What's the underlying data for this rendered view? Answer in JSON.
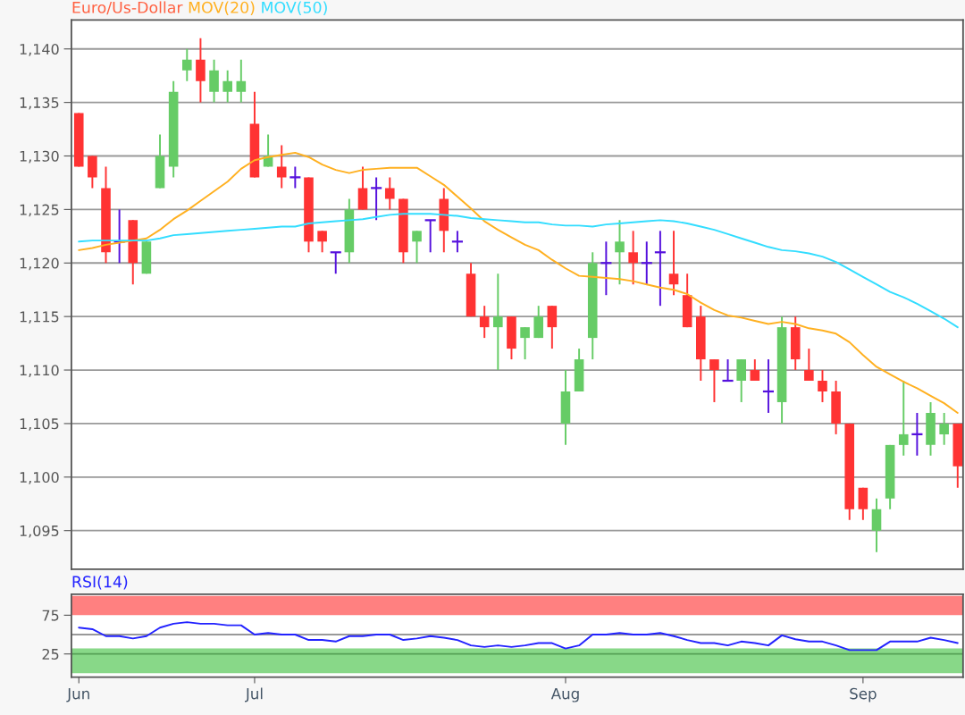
{
  "chart_data": [
    {
      "type": "candlestick",
      "legend": "top left",
      "grid": "y",
      "tick_labels": "y",
      "categories": [
        null,
        null,
        null,
        null,
        null,
        null,
        null,
        null,
        null,
        null,
        null,
        null,
        null,
        null,
        null,
        null,
        null,
        null,
        null,
        null,
        null,
        null,
        null,
        null,
        null,
        null,
        null,
        null,
        null,
        null,
        null,
        null,
        null,
        null,
        null,
        null,
        null,
        null,
        null,
        null,
        null,
        null,
        null,
        null,
        null,
        null,
        null,
        null,
        null,
        null,
        null,
        null,
        null,
        null,
        null,
        null,
        null,
        null,
        null,
        null,
        null,
        null,
        null,
        null,
        null,
        null
      ],
      "ylim": [
        1091.4,
        1142.7
      ],
      "yticks": [
        {
          "value": 1095,
          "label": "1,095"
        },
        {
          "value": 1100,
          "label": "1,100"
        },
        {
          "value": 1105,
          "label": "1,105"
        },
        {
          "value": 1110,
          "label": "1,110"
        },
        {
          "value": 1115,
          "label": "1,115"
        },
        {
          "value": 1120,
          "label": "1,120"
        },
        {
          "value": 1125,
          "label": "1,125"
        },
        {
          "value": 1130,
          "label": "1,130"
        },
        {
          "value": 1135,
          "label": "1,135"
        },
        {
          "value": 1140,
          "label": "1,140"
        }
      ],
      "title": "Euro/Us-Dollar",
      "ohlc": [
        [
          1134,
          1134,
          1129,
          1129
        ],
        [
          1130,
          1130,
          1127,
          1128
        ],
        [
          1127,
          1129,
          1120,
          1121
        ],
        [
          1122,
          1125,
          1120,
          1122
        ],
        [
          1124,
          1124,
          1118,
          1120
        ],
        [
          1119,
          1122,
          1119,
          1122
        ],
        [
          1127,
          1132,
          1127,
          1130
        ],
        [
          1129,
          1137,
          1128,
          1136
        ],
        [
          1138,
          1140,
          1137,
          1139
        ],
        [
          1139,
          1141,
          1135,
          1137
        ],
        [
          1136,
          1139,
          1135,
          1138
        ],
        [
          1136,
          1138,
          1135,
          1137
        ],
        [
          1136,
          1139,
          1135,
          1137
        ],
        [
          1133,
          1136,
          1128,
          1128
        ],
        [
          1129,
          1132,
          1129,
          1130
        ],
        [
          1129,
          1131,
          1127,
          1128
        ],
        [
          1128,
          1129,
          1127,
          1128
        ],
        [
          1128,
          1128,
          1121,
          1122
        ],
        [
          1123,
          1123,
          1121,
          1122
        ],
        [
          1121,
          1121,
          1119,
          1121
        ],
        [
          1121,
          1126,
          1120,
          1125
        ],
        [
          1127,
          1129,
          1125,
          1125
        ],
        [
          1127,
          1128,
          1124,
          1127
        ],
        [
          1127,
          1128,
          1125,
          1126
        ],
        [
          1126,
          1126,
          1120,
          1121
        ],
        [
          1122,
          1123,
          1120,
          1123
        ],
        [
          1124,
          1124,
          1121,
          1124
        ],
        [
          1126,
          1127,
          1121,
          1123
        ],
        [
          1122,
          1123,
          1121,
          1122
        ],
        [
          1119,
          1120,
          1115,
          1115
        ],
        [
          1115,
          1116,
          1113,
          1114
        ],
        [
          1114,
          1119,
          1110,
          1115
        ],
        [
          1115,
          1115,
          1111,
          1112
        ],
        [
          1113,
          1114,
          1111,
          1114
        ],
        [
          1113,
          1116,
          1113,
          1115
        ],
        [
          1116,
          1116,
          1112,
          1114
        ],
        [
          1105,
          1110,
          1103,
          1108
        ],
        [
          1108,
          1112,
          1108,
          1111
        ],
        [
          1113,
          1121,
          1111,
          1120
        ],
        [
          1120,
          1122,
          1117,
          1120
        ],
        [
          1121,
          1124,
          1118,
          1122
        ],
        [
          1121,
          1123,
          1118,
          1120
        ],
        [
          1120,
          1122,
          1118,
          1120
        ],
        [
          1121,
          1123,
          1116,
          1121
        ],
        [
          1119,
          1123,
          1117,
          1118
        ],
        [
          1117,
          1119,
          1114,
          1114
        ],
        [
          1115,
          1116,
          1109,
          1111
        ],
        [
          1111,
          1111,
          1107,
          1110
        ],
        [
          1109,
          1111,
          1109,
          1109
        ],
        [
          1109,
          1111,
          1107,
          1111
        ],
        [
          1110,
          1111,
          1109,
          1109
        ],
        [
          1108,
          1111,
          1106,
          1108
        ],
        [
          1107,
          1115,
          1105,
          1114
        ],
        [
          1114,
          1115,
          1110,
          1111
        ],
        [
          1110,
          1112,
          1109,
          1109
        ],
        [
          1109,
          1110,
          1107,
          1108
        ],
        [
          1108,
          1109,
          1104,
          1105
        ],
        [
          1105,
          1105,
          1096,
          1097
        ],
        [
          1099,
          1099,
          1096,
          1097
        ],
        [
          1095,
          1098,
          1093,
          1097
        ],
        [
          1098,
          1103,
          1097,
          1103
        ],
        [
          1103,
          1109,
          1102,
          1104
        ],
        [
          1104,
          1106,
          1102,
          1104
        ],
        [
          1103,
          1107,
          1102,
          1106
        ],
        [
          1104,
          1106,
          1103,
          1105
        ],
        [
          1105,
          1105,
          1099,
          1101
        ]
      ],
      "colors": [
        "#ff3333",
        "#ff3333",
        "#ff3333",
        "#5511dd",
        "#ff3333",
        "#66cc66",
        "#66cc66",
        "#66cc66",
        "#66cc66",
        "#ff3333",
        "#66cc66",
        "#66cc66",
        "#66cc66",
        "#ff3333",
        "#66cc66",
        "#ff3333",
        "#5511dd",
        "#ff3333",
        "#ff3333",
        "#5511dd",
        "#66cc66",
        "#ff3333",
        "#5511dd",
        "#ff3333",
        "#ff3333",
        "#66cc66",
        "#5511dd",
        "#ff3333",
        "#5511dd",
        "#ff3333",
        "#ff3333",
        "#66cc66",
        "#ff3333",
        "#66cc66",
        "#66cc66",
        "#ff3333",
        "#66cc66",
        "#66cc66",
        "#66cc66",
        "#5511dd",
        "#66cc66",
        "#ff3333",
        "#5511dd",
        "#5511dd",
        "#ff3333",
        "#ff3333",
        "#ff3333",
        "#ff3333",
        "#5511dd",
        "#66cc66",
        "#ff3333",
        "#5511dd",
        "#66cc66",
        "#ff3333",
        "#ff3333",
        "#ff3333",
        "#ff3333",
        "#ff3333",
        "#ff3333",
        "#66cc66",
        "#66cc66",
        "#66cc66",
        "#5511dd",
        "#66cc66",
        "#66cc66",
        "#ff3333"
      ],
      "series": [
        {
          "type": "line",
          "name": "MOV(20)",
          "color": "#ffb020",
          "values": [
            1121.2,
            1121.4,
            1121.7,
            1121.9,
            1122.1,
            1122.3,
            1123.1,
            1124.1,
            1124.9,
            1125.8,
            1126.7,
            1127.6,
            1128.8,
            1129.6,
            1129.9,
            1130.1,
            1130.3,
            1129.9,
            1129.2,
            1128.7,
            1128.4,
            1128.7,
            1128.8,
            1128.9,
            1128.9,
            1128.9,
            1128.1,
            1127.3,
            1126.2,
            1125.1,
            1123.9,
            1123.1,
            1122.4,
            1121.7,
            1121.2,
            1120.3,
            1119.5,
            1118.8,
            1118.7,
            1118.6,
            1118.5,
            1118.3,
            1118.0,
            1117.7,
            1117.5,
            1117.1,
            1116.3,
            1115.6,
            1115.1,
            1114.9,
            1114.6,
            1114.3,
            1114.5,
            1114.3,
            1113.9,
            1113.7,
            1113.4,
            1112.6,
            1111.4,
            1110.3,
            1109.6,
            1108.9,
            1108.3,
            1107.6,
            1106.9,
            1106.0
          ]
        },
        {
          "type": "line",
          "name": "MOV(50)",
          "color": "#33ddff",
          "values": [
            1122.0,
            1122.1,
            1122.1,
            1122.1,
            1122.1,
            1122.1,
            1122.3,
            1122.6,
            1122.7,
            1122.8,
            1122.9,
            1123.0,
            1123.1,
            1123.2,
            1123.3,
            1123.4,
            1123.4,
            1123.7,
            1123.8,
            1123.9,
            1124.0,
            1124.1,
            1124.3,
            1124.5,
            1124.6,
            1124.6,
            1124.6,
            1124.5,
            1124.4,
            1124.2,
            1124.1,
            1124.0,
            1123.9,
            1123.8,
            1123.8,
            1123.6,
            1123.5,
            1123.5,
            1123.4,
            1123.6,
            1123.7,
            1123.8,
            1123.9,
            1124.0,
            1123.9,
            1123.7,
            1123.4,
            1123.1,
            1122.7,
            1122.3,
            1121.9,
            1121.5,
            1121.2,
            1121.1,
            1120.9,
            1120.6,
            1120.1,
            1119.4,
            1118.7,
            1118.0,
            1117.3,
            1116.8,
            1116.2,
            1115.5,
            1114.8,
            1114.0
          ]
        }
      ]
    },
    {
      "type": "line",
      "legend": "top left",
      "categories": [
        "Jun",
        null,
        null,
        null,
        null,
        null,
        null,
        null,
        null,
        null,
        null,
        null,
        null,
        "Jul",
        null,
        null,
        null,
        null,
        null,
        null,
        null,
        null,
        null,
        null,
        null,
        null,
        null,
        null,
        null,
        null,
        null,
        null,
        null,
        null,
        null,
        null,
        "Aug",
        null,
        null,
        null,
        null,
        null,
        null,
        null,
        null,
        null,
        null,
        null,
        null,
        null,
        null,
        null,
        null,
        null,
        null,
        null,
        null,
        null,
        "Sep",
        null,
        null,
        null,
        null,
        null,
        null,
        null
      ],
      "ylim": [
        -5,
        102
      ],
      "yticks": [
        25,
        75
      ],
      "bands": [
        {
          "axis": "y",
          "from": 75,
          "to": 100,
          "color": "#ff8080"
        },
        {
          "axis": "y",
          "from": 0,
          "to": 32,
          "color": "#88d888"
        }
      ],
      "ref_lines": [
        {
          "axis": "y",
          "value": 50,
          "color": "#999999"
        },
        {
          "axis": "y",
          "value": 25,
          "color": "#55a055"
        }
      ],
      "series": [
        {
          "name": "RSI(14)",
          "color": "#2222ff",
          "values": [
            59,
            57,
            48,
            48,
            45,
            48,
            59,
            64,
            66,
            64,
            64,
            62,
            62,
            50,
            52,
            50,
            50,
            43,
            43,
            41,
            48,
            48,
            50,
            50,
            43,
            45,
            48,
            46,
            43,
            36,
            34,
            36,
            34,
            36,
            39,
            39,
            32,
            36,
            50,
            50,
            52,
            50,
            50,
            52,
            48,
            43,
            39,
            39,
            36,
            41,
            39,
            36,
            49,
            44,
            41,
            41,
            36,
            30,
            30,
            30,
            41,
            41,
            41,
            46,
            43,
            39
          ]
        }
      ]
    }
  ]
}
